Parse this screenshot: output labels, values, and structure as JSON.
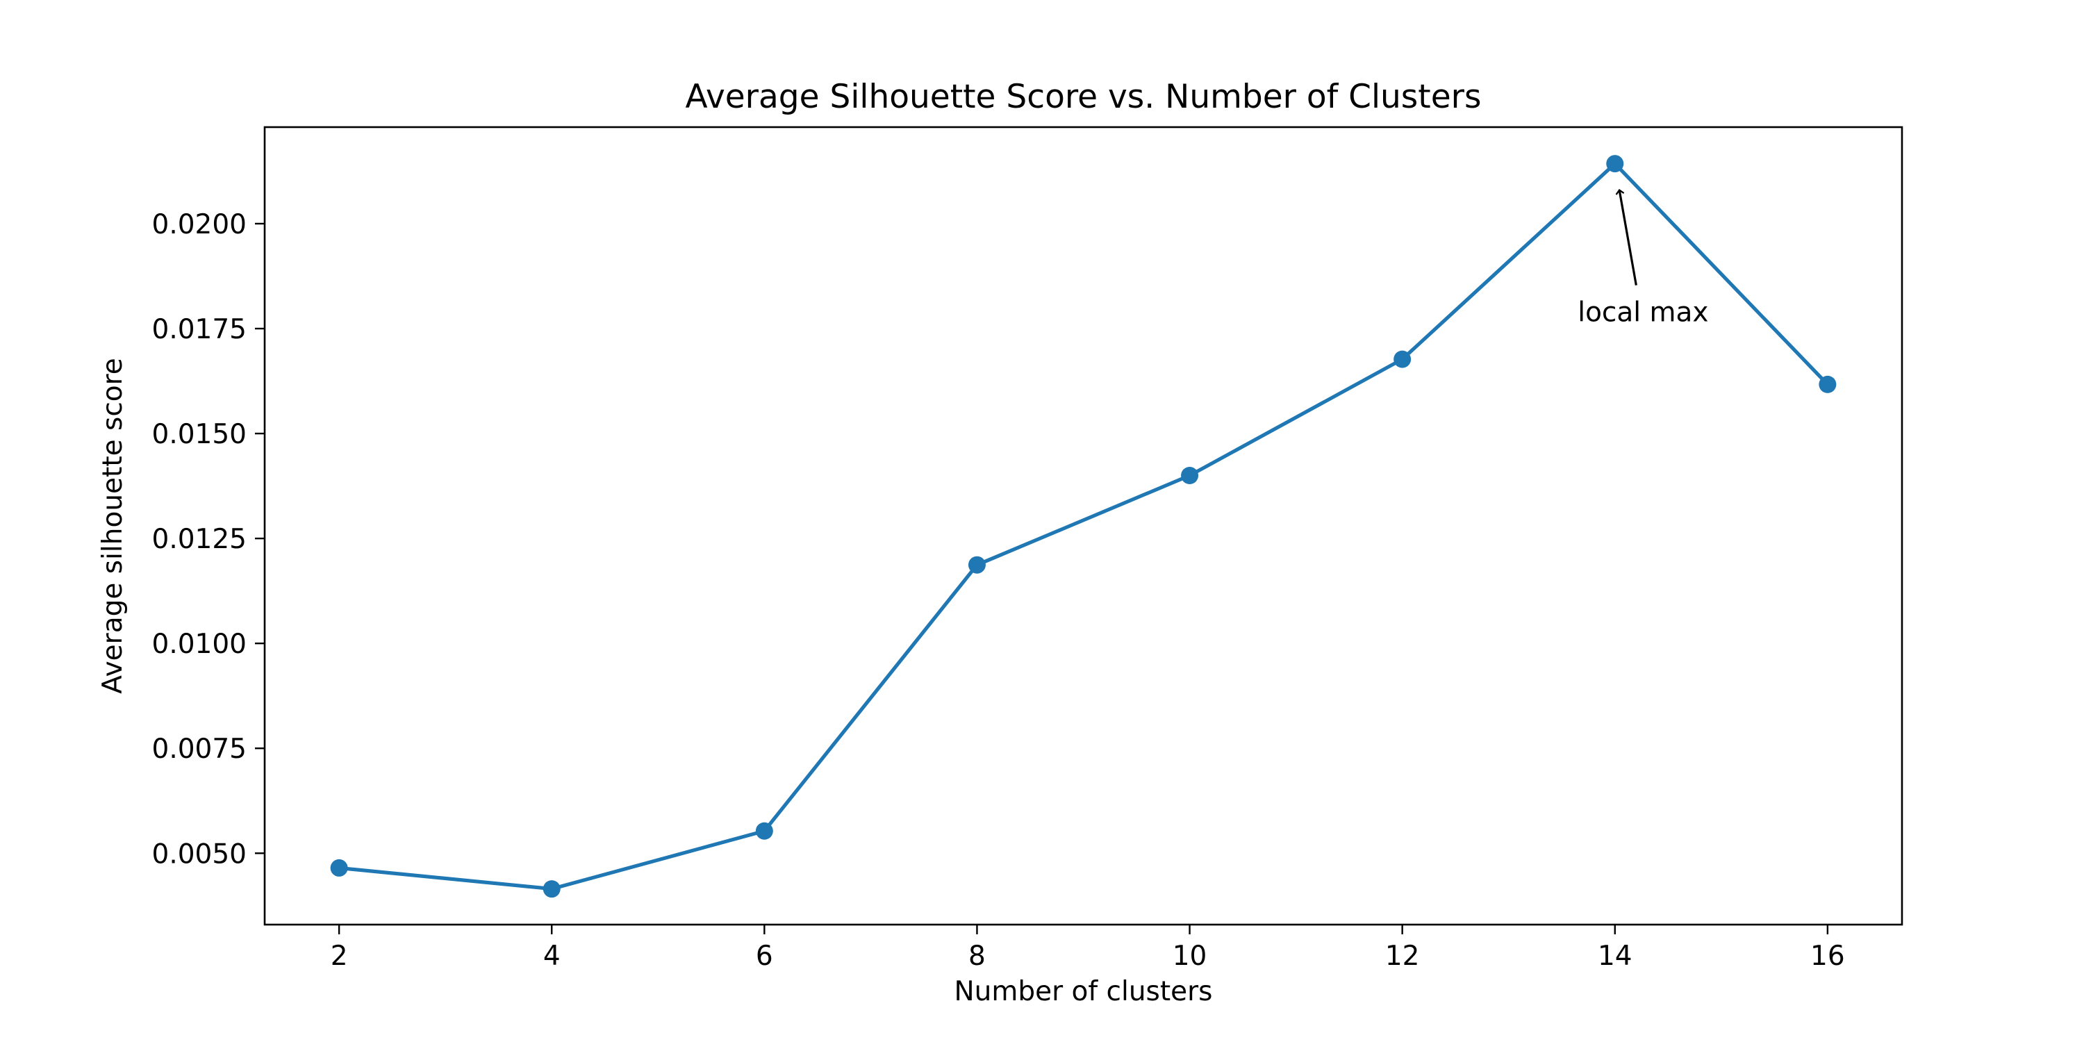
{
  "chart_data": {
    "type": "line",
    "title": "Average Silhouette Score vs. Number of Clusters",
    "xlabel": "Number of clusters",
    "ylabel": "Average silhouette score",
    "x": [
      2,
      4,
      6,
      8,
      10,
      12,
      14,
      16
    ],
    "xticks": [
      "2",
      "4",
      "6",
      "8",
      "10",
      "12",
      "14",
      "16"
    ],
    "xlim": [
      1.3,
      16.7
    ],
    "yticks": [
      "0.0050",
      "0.0075",
      "0.0100",
      "0.0125",
      "0.0150",
      "0.0175",
      "0.0200"
    ],
    "ylim": [
      0.0033,
      0.0223
    ],
    "grid": false,
    "series": [
      {
        "values": [
          0.00465,
          0.00415,
          0.00553,
          0.01187,
          0.014,
          0.01677,
          0.02143,
          0.01617
        ],
        "color": "#1f77b4",
        "marker": "circle"
      }
    ],
    "annotations": [
      {
        "text": "local max",
        "target": [
          14,
          0.02143
        ],
        "text_anchor_point": [
          14.2,
          0.0184
        ]
      }
    ]
  }
}
